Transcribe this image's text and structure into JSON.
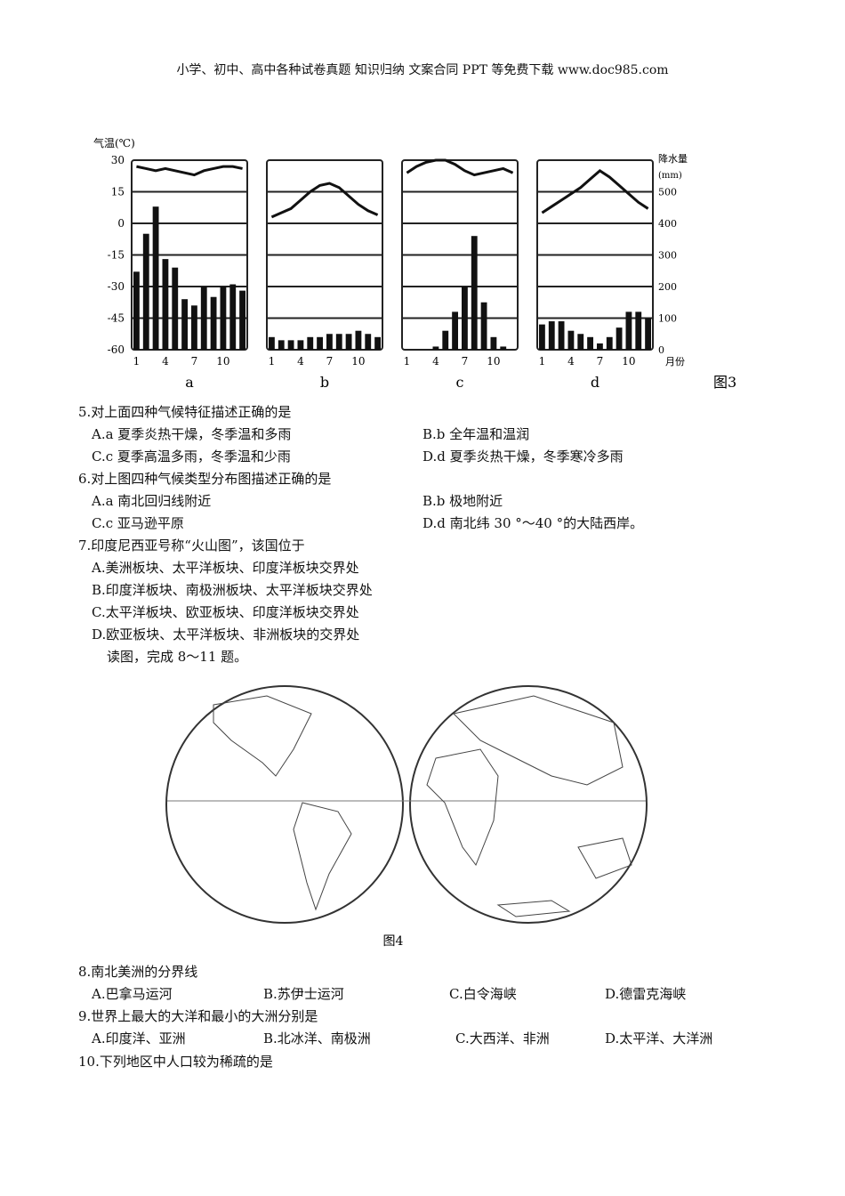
{
  "header": "小学、初中、高中各种试卷真题 知识归纳 文案合同 PPT 等免费下载   www.doc985.com",
  "figure3": {
    "caption": "图3",
    "left_axis_label": "气温(℃)",
    "right_axis_label": "降水量",
    "right_axis_unit": "(mm)",
    "x_axis_label": "月份",
    "left_ticks": [
      "30",
      "15",
      "0",
      "-15",
      "-30",
      "-45",
      "-60"
    ],
    "right_ticks": [
      "500",
      "400",
      "300",
      "200",
      "100",
      "0"
    ],
    "month_ticks": [
      "1",
      "4",
      "7",
      "10"
    ]
  },
  "chart_data": {
    "type": "bar",
    "title": "",
    "x": [
      1,
      2,
      3,
      4,
      5,
      6,
      7,
      8,
      9,
      10,
      11,
      12
    ],
    "ylim_temperature": [
      -60,
      30
    ],
    "ylim_precipitation": [
      0,
      600
    ],
    "panels": [
      {
        "label": "a",
        "temperature": [
          27,
          26,
          25,
          26,
          25,
          24,
          23,
          25,
          26,
          27,
          27,
          26
        ],
        "precipitation": [
          247,
          367,
          453,
          287,
          260,
          160,
          140,
          200,
          167,
          200,
          207,
          187
        ]
      },
      {
        "label": "b",
        "temperature": [
          3,
          5,
          7,
          11,
          15,
          18,
          19,
          17,
          13,
          9,
          6,
          4
        ],
        "precipitation": [
          40,
          30,
          30,
          30,
          40,
          40,
          50,
          50,
          50,
          60,
          50,
          40
        ]
      },
      {
        "label": "c",
        "temperature": [
          24,
          27,
          29,
          30,
          30,
          28,
          25,
          23,
          24,
          25,
          26,
          24
        ],
        "precipitation": [
          0,
          0,
          0,
          10,
          60,
          120,
          200,
          360,
          150,
          40,
          10,
          0
        ]
      },
      {
        "label": "d",
        "temperature": [
          5,
          8,
          11,
          14,
          17,
          21,
          25,
          22,
          18,
          14,
          10,
          7
        ],
        "precipitation": [
          80,
          90,
          90,
          60,
          50,
          40,
          20,
          40,
          70,
          120,
          120,
          100
        ]
      }
    ]
  },
  "questions": {
    "q5": {
      "stem": "5.对上面四种气候特征描述正确的是",
      "A": "A.a 夏季炎热干燥，冬季温和多雨",
      "B": "B.b 全年温和温润",
      "C": "C.c 夏季高温多雨，冬季温和少雨",
      "D": "D.d 夏季炎热干燥，冬季寒冷多雨"
    },
    "q6": {
      "stem": "6.对上图四种气候类型分布图描述正确的是",
      "A": "A.a 南北回归线附近",
      "B": "B.b 极地附近",
      "C": "C.c 亚马逊平原",
      "D": "D.d 南北纬 30 °～40 °的大陆西岸。"
    },
    "q7": {
      "stem": "7.印度尼西亚号称“火山图”，该国位于",
      "A": "A.美洲板块、太平洋板块、印度洋板块交界处",
      "B": "B.印度洋板块、南极洲板块、太平洋板块交界处",
      "C": "C.太平洋板块、欧亚板块、印度洋板块交界处",
      "D": "D.欧亚板块、太平洋板块、非洲板块的交界处"
    },
    "instruction": "读图，完成 8～11 题。",
    "figure4_caption": "图4",
    "q8": {
      "stem": "8.南北美洲的分界线",
      "A": "A.巴拿马运河",
      "B": "B.苏伊士运河",
      "C": "C.白令海峡",
      "D": "D.德雷克海峡"
    },
    "q9": {
      "stem": "9.世界上最大的大洋和最小的大洲分别是",
      "A": "A.印度洋、亚洲",
      "B": "B.北冰洋、南极洲",
      "C": "C.大西洋、非洲",
      "D": "D.太平洋、大洋洲"
    },
    "q10": {
      "stem": "10.下列地区中人口较为稀疏的是"
    }
  }
}
